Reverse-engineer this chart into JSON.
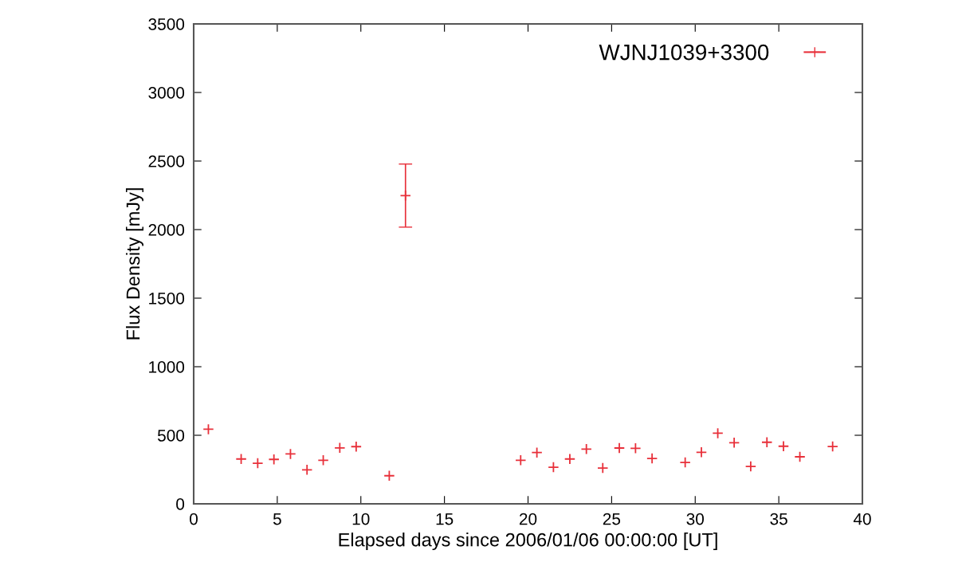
{
  "chart_data": {
    "type": "scatter",
    "xlabel": "Elapsed days since 2006/01/06 00:00:00 [UT]",
    "ylabel": "Flux Density [mJy]",
    "x": [
      0.88,
      2.84,
      3.83,
      4.8,
      5.79,
      6.78,
      7.75,
      8.74,
      9.72,
      11.7,
      12.67,
      19.56,
      20.53,
      21.52,
      22.5,
      23.49,
      24.47,
      25.46,
      26.43,
      27.42,
      29.4,
      30.37,
      31.35,
      32.33,
      33.32,
      34.29,
      35.28,
      36.26,
      38.22
    ],
    "series": [
      {
        "name": "WJNJ1039+3300",
        "color": "#e8303a",
        "values": [
          544,
          327,
          296,
          324,
          364,
          248,
          318,
          408,
          417,
          205,
          2248,
          318,
          374,
          267,
          327,
          399,
          261,
          407,
          405,
          331,
          302,
          376,
          515,
          446,
          273,
          449,
          420,
          343,
          418
        ],
        "errors": [
          null,
          null,
          null,
          null,
          null,
          null,
          null,
          null,
          null,
          null,
          230,
          null,
          null,
          null,
          null,
          null,
          null,
          null,
          null,
          null,
          null,
          null,
          null,
          null,
          null,
          null,
          null,
          null,
          null
        ]
      }
    ],
    "xlim": [
      0,
      40
    ],
    "xticks": [
      0,
      5,
      10,
      15,
      20,
      25,
      30,
      35,
      40
    ],
    "ylim": [
      0,
      3500
    ],
    "yticks": [
      0,
      500,
      1000,
      1500,
      2000,
      2500,
      3000,
      3500
    ],
    "marker": "cross",
    "grid": false,
    "legend": "top right"
  }
}
